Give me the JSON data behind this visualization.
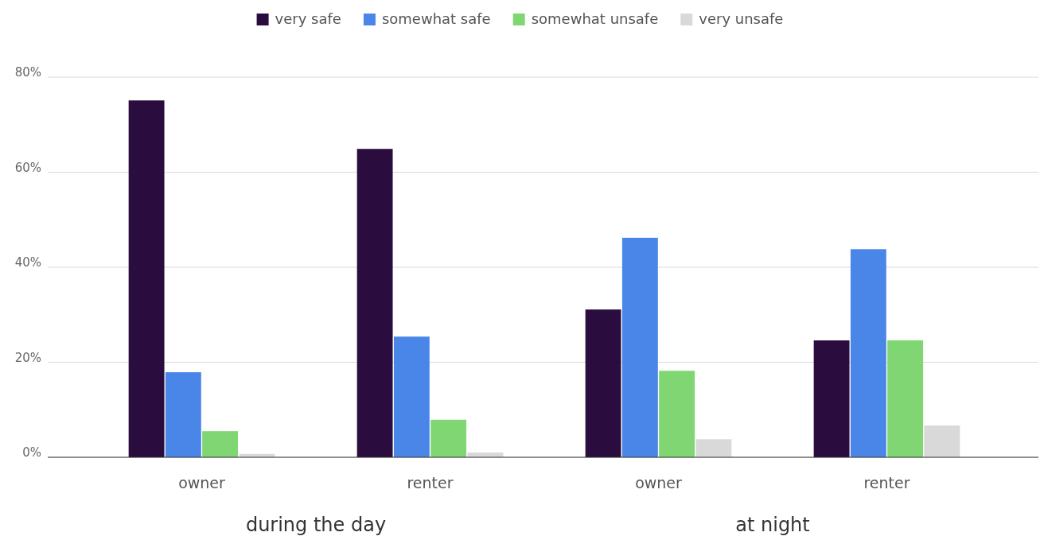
{
  "chart_data": {
    "type": "bar",
    "categories": [
      "owner",
      "renter",
      "owner",
      "renter"
    ],
    "series": [
      {
        "name": "very safe",
        "color": "#2a0c3e",
        "values": [
          75.1,
          64.9,
          31.1,
          24.6
        ]
      },
      {
        "name": "somewhat safe",
        "color": "#4a86e8",
        "values": [
          17.9,
          25.4,
          46.2,
          43.8
        ]
      },
      {
        "name": "somewhat unsafe",
        "color": "#80d672",
        "values": [
          5.5,
          7.9,
          18.2,
          24.6
        ]
      },
      {
        "name": "very unsafe",
        "color": "#d9d9d9",
        "values": [
          0.7,
          1.0,
          3.8,
          6.7
        ]
      }
    ],
    "ylim": [
      0,
      80
    ],
    "yticks": [
      {
        "value": 0,
        "label": "0%"
      },
      {
        "value": 20,
        "label": "20%"
      },
      {
        "value": 40,
        "label": "40%"
      },
      {
        "value": 60,
        "label": "60%"
      },
      {
        "value": 80,
        "label": "80%"
      }
    ],
    "grid": "y",
    "legend": "top",
    "annotations": [
      "during the day",
      "at night"
    ]
  }
}
